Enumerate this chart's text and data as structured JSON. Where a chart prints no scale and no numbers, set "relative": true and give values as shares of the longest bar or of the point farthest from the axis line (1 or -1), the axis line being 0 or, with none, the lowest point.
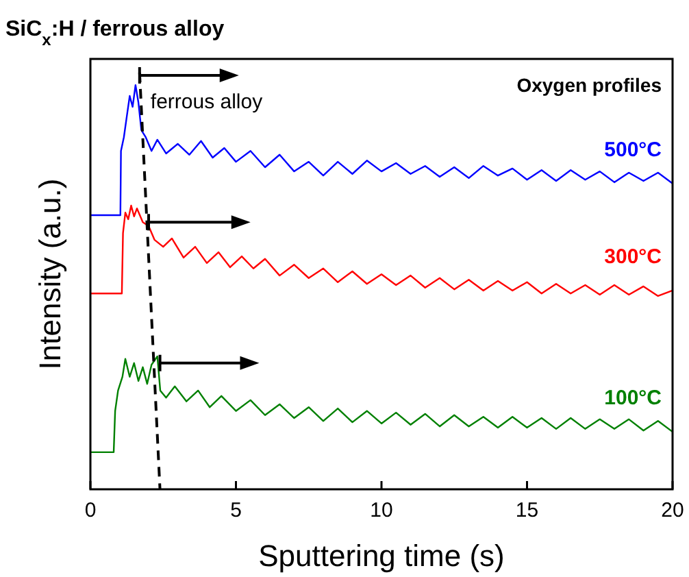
{
  "chart_data": {
    "type": "line",
    "title": "SiC$_{x}$:H / ferrous alloy",
    "xlabel": "Sputtering time (s)",
    "ylabel": "Intensity (a.u.)",
    "annotations": [
      "ferrous alloy",
      "Oxygen profiles"
    ],
    "relative": true,
    "xlim": [
      0,
      20
    ],
    "xticks": [
      0,
      5,
      10,
      15,
      20
    ],
    "series": [
      {
        "name": "500°C",
        "color": "#0000ff",
        "x": [
          0,
          1.03,
          1.05,
          1.15,
          1.25,
          1.35,
          1.45,
          1.55,
          1.65,
          1.75,
          1.9,
          2.1,
          2.3,
          2.6,
          3.0,
          3.4,
          3.8,
          4.2,
          4.6,
          5.0,
          5.5,
          6.0,
          6.5,
          7.0,
          7.5,
          8.0,
          8.5,
          9.0,
          9.5,
          10.0,
          10.5,
          11.0,
          11.5,
          12.0,
          12.5,
          13.0,
          13.5,
          14.0,
          14.5,
          15.0,
          15.5,
          16.0,
          16.5,
          17.0,
          17.5,
          18.0,
          18.5,
          19.0,
          19.5,
          20.0
        ],
        "values": [
          0.658,
          0.658,
          0.812,
          0.845,
          0.895,
          0.944,
          0.918,
          0.97,
          0.928,
          0.862,
          0.845,
          0.812,
          0.839,
          0.806,
          0.829,
          0.803,
          0.836,
          0.796,
          0.819,
          0.786,
          0.812,
          0.773,
          0.803,
          0.763,
          0.786,
          0.753,
          0.786,
          0.757,
          0.789,
          0.763,
          0.783,
          0.757,
          0.776,
          0.75,
          0.773,
          0.747,
          0.776,
          0.753,
          0.77,
          0.743,
          0.766,
          0.74,
          0.766,
          0.743,
          0.763,
          0.737,
          0.76,
          0.74,
          0.76,
          0.734
        ]
      },
      {
        "name": "300°C",
        "color": "#ff0000",
        "x": [
          0,
          1.08,
          1.12,
          1.2,
          1.3,
          1.4,
          1.5,
          1.6,
          1.8,
          2.0,
          2.2,
          2.5,
          2.8,
          3.2,
          3.6,
          4.0,
          4.4,
          4.8,
          5.2,
          5.6,
          6.0,
          6.5,
          7.0,
          7.5,
          8.0,
          8.5,
          9.0,
          9.5,
          10,
          10.5,
          11,
          11.5,
          12,
          12.5,
          13,
          13.5,
          14,
          14.5,
          15,
          15.5,
          16,
          16.5,
          17,
          17.5,
          18,
          18.5,
          19,
          19.5,
          20
        ],
        "values": [
          0.47,
          0.47,
          0.615,
          0.664,
          0.648,
          0.681,
          0.655,
          0.674,
          0.641,
          0.632,
          0.599,
          0.582,
          0.602,
          0.556,
          0.582,
          0.543,
          0.569,
          0.533,
          0.559,
          0.53,
          0.553,
          0.513,
          0.539,
          0.507,
          0.53,
          0.497,
          0.523,
          0.493,
          0.516,
          0.49,
          0.513,
          0.484,
          0.507,
          0.48,
          0.503,
          0.477,
          0.5,
          0.477,
          0.497,
          0.47,
          0.493,
          0.47,
          0.49,
          0.467,
          0.49,
          0.467,
          0.487,
          0.464,
          0.477
        ]
      },
      {
        "name": "100°C",
        "color": "#008000",
        "x": [
          0,
          0.8,
          0.85,
          0.95,
          1.1,
          1.2,
          1.35,
          1.5,
          1.65,
          1.8,
          1.95,
          2.1,
          2.3,
          2.4,
          2.6,
          2.9,
          3.3,
          3.7,
          4.1,
          4.5,
          5.0,
          5.5,
          6.0,
          6.5,
          7.0,
          7.5,
          8.0,
          8.5,
          9.0,
          9.5,
          10,
          10.5,
          11,
          11.5,
          12,
          12.5,
          13,
          13.5,
          14,
          14.5,
          15,
          15.5,
          16,
          16.5,
          17,
          17.5,
          18,
          18.5,
          19,
          19.5,
          20
        ],
        "values": [
          0.089,
          0.089,
          0.188,
          0.237,
          0.27,
          0.313,
          0.27,
          0.303,
          0.26,
          0.293,
          0.253,
          0.299,
          0.319,
          0.237,
          0.22,
          0.247,
          0.211,
          0.237,
          0.197,
          0.224,
          0.188,
          0.214,
          0.178,
          0.204,
          0.171,
          0.197,
          0.164,
          0.194,
          0.161,
          0.188,
          0.158,
          0.184,
          0.155,
          0.181,
          0.151,
          0.178,
          0.151,
          0.174,
          0.148,
          0.174,
          0.148,
          0.171,
          0.145,
          0.171,
          0.145,
          0.168,
          0.145,
          0.168,
          0.141,
          0.164,
          0.138
        ]
      },
      {
        "color": "#000000",
        "line_style": "dashed",
        "x": [
          1.69,
          2.39
        ],
        "values": [
          1,
          0
        ]
      }
    ]
  }
}
